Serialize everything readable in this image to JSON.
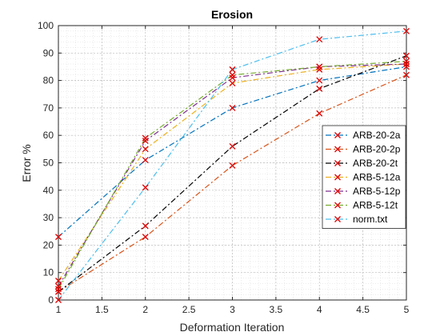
{
  "chart_data": {
    "type": "line",
    "title": "Erosion",
    "xlabel": "Deformation Iteration",
    "ylabel": "Error %",
    "xlim": [
      1,
      5
    ],
    "ylim": [
      0,
      100
    ],
    "xticks": [
      "1",
      "1.5",
      "2",
      "2.5",
      "3",
      "3.5",
      "4",
      "4.5",
      "5"
    ],
    "yticks": [
      "0",
      "10",
      "20",
      "30",
      "40",
      "50",
      "60",
      "70",
      "80",
      "90",
      "100"
    ],
    "grid": true,
    "minor_grid": true,
    "legend_position": "right",
    "x": [
      1,
      2,
      3,
      4,
      5
    ],
    "series": [
      {
        "name": "ARB-20-2a",
        "values": [
          23,
          51,
          70,
          80,
          85
        ],
        "color": "#0072BD",
        "dash": "7,3,2,3"
      },
      {
        "name": "ARB-20-2p",
        "values": [
          3,
          23,
          49,
          68,
          82
        ],
        "color": "#D95319",
        "dash": "7,3,2,3"
      },
      {
        "name": "ARB-20-2t",
        "values": [
          3,
          27,
          56,
          77,
          89
        ],
        "color": "#000000",
        "dash": "7,3,2,3"
      },
      {
        "name": "ARB-5-12a",
        "values": [
          7,
          55,
          79,
          84,
          86
        ],
        "color": "#EDB120",
        "dash": "7,3,2,3"
      },
      {
        "name": "ARB-5-12p",
        "values": [
          5,
          58,
          81,
          85,
          86
        ],
        "color": "#7E2F8E",
        "dash": "7,3,2,3"
      },
      {
        "name": "ARB-5-12t",
        "values": [
          4,
          59,
          82,
          85,
          87
        ],
        "color": "#77AC30",
        "dash": "7,3,2,3"
      },
      {
        "name": "norm.txt",
        "values": [
          0,
          41,
          84,
          95,
          98
        ],
        "color": "#4DBEEE",
        "dash": "7,3,2,3"
      }
    ],
    "marker_color": "#E00000"
  }
}
